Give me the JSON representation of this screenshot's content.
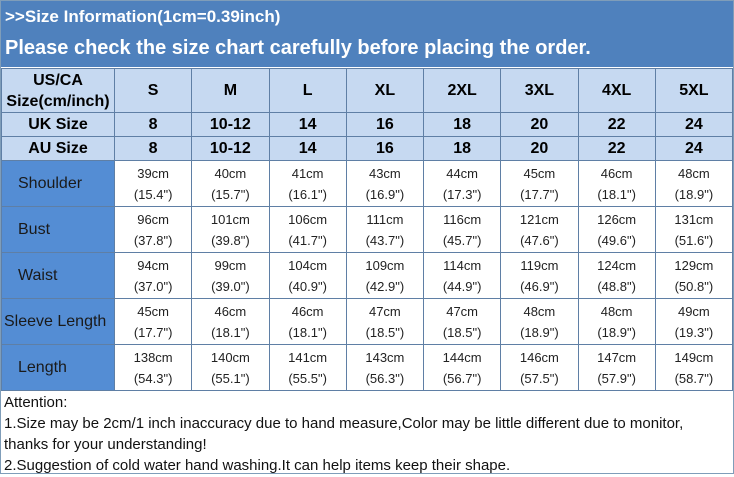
{
  "title": ">>Size  Information(1cm=0.39inch)",
  "subtitle": "Please check the size chart carefully before placing the order.",
  "table": {
    "header_label": [
      "US/CA",
      "Size(cm/inch)"
    ],
    "sizes": [
      "S",
      "M",
      "L",
      "XL",
      "2XL",
      "3XL",
      "4XL",
      "5XL"
    ],
    "uk": {
      "label": "UK Size",
      "values": [
        "8",
        "10-12",
        "14",
        "16",
        "18",
        "20",
        "22",
        "24"
      ]
    },
    "au": {
      "label": "AU Size",
      "values": [
        "8",
        "10-12",
        "14",
        "16",
        "18",
        "20",
        "22",
        "24"
      ]
    },
    "rows": [
      {
        "label": "Shoulder",
        "cm": [
          "39cm",
          "40cm",
          "41cm",
          "43cm",
          "44cm",
          "45cm",
          "46cm",
          "48cm"
        ],
        "inch": [
          "(15.4\")",
          "(15.7\")",
          "(16.1\")",
          "(16.9\")",
          "(17.3\")",
          "(17.7\")",
          "(18.1\")",
          "(18.9\")"
        ]
      },
      {
        "label": "Bust",
        "cm": [
          "96cm",
          "101cm",
          "106cm",
          "111cm",
          "116cm",
          "121cm",
          "126cm",
          "131cm"
        ],
        "inch": [
          "(37.8\")",
          "(39.8\")",
          "(41.7\")",
          "(43.7\")",
          "(45.7\")",
          "(47.6\")",
          "(49.6\")",
          "(51.6\")"
        ]
      },
      {
        "label": "Waist",
        "cm": [
          "94cm",
          "99cm",
          "104cm",
          "109cm",
          "114cm",
          "119cm",
          "124cm",
          "129cm"
        ],
        "inch": [
          "(37.0\")",
          "(39.0\")",
          "(40.9\")",
          "(42.9\")",
          "(44.9\")",
          "(46.9\")",
          "(48.8\")",
          "(50.8\")"
        ]
      },
      {
        "label": "Sleeve Length",
        "cm": [
          "45cm",
          "46cm",
          "46cm",
          "47cm",
          "47cm",
          "48cm",
          "48cm",
          "49cm"
        ],
        "inch": [
          "(17.7\")",
          "(18.1\")",
          "(18.1\")",
          "(18.5\")",
          "(18.5\")",
          "(18.9\")",
          "(18.9\")",
          "(19.3\")"
        ]
      },
      {
        "label": "Length",
        "cm": [
          "138cm",
          "140cm",
          "141cm",
          "143cm",
          "144cm",
          "146cm",
          "147cm",
          "149cm"
        ],
        "inch": [
          "(54.3\")",
          "(55.1\")",
          "(55.5\")",
          "(56.3\")",
          "(56.7\")",
          "(57.5\")",
          "(57.9\")",
          "(58.7\")"
        ]
      }
    ]
  },
  "attention": {
    "heading": "Attention:",
    "lines": [
      "1.Size may be 2cm/1 inch inaccuracy due to hand measure,Color may be little different due to monitor,",
      "thanks for your understanding!",
      "2.Suggestion of cold water hand washing.It can help items keep their shape."
    ]
  },
  "colors": {
    "header_bar": "#4f81bd",
    "size_header": "#c6d9f1",
    "row_label": "#548dd4"
  }
}
